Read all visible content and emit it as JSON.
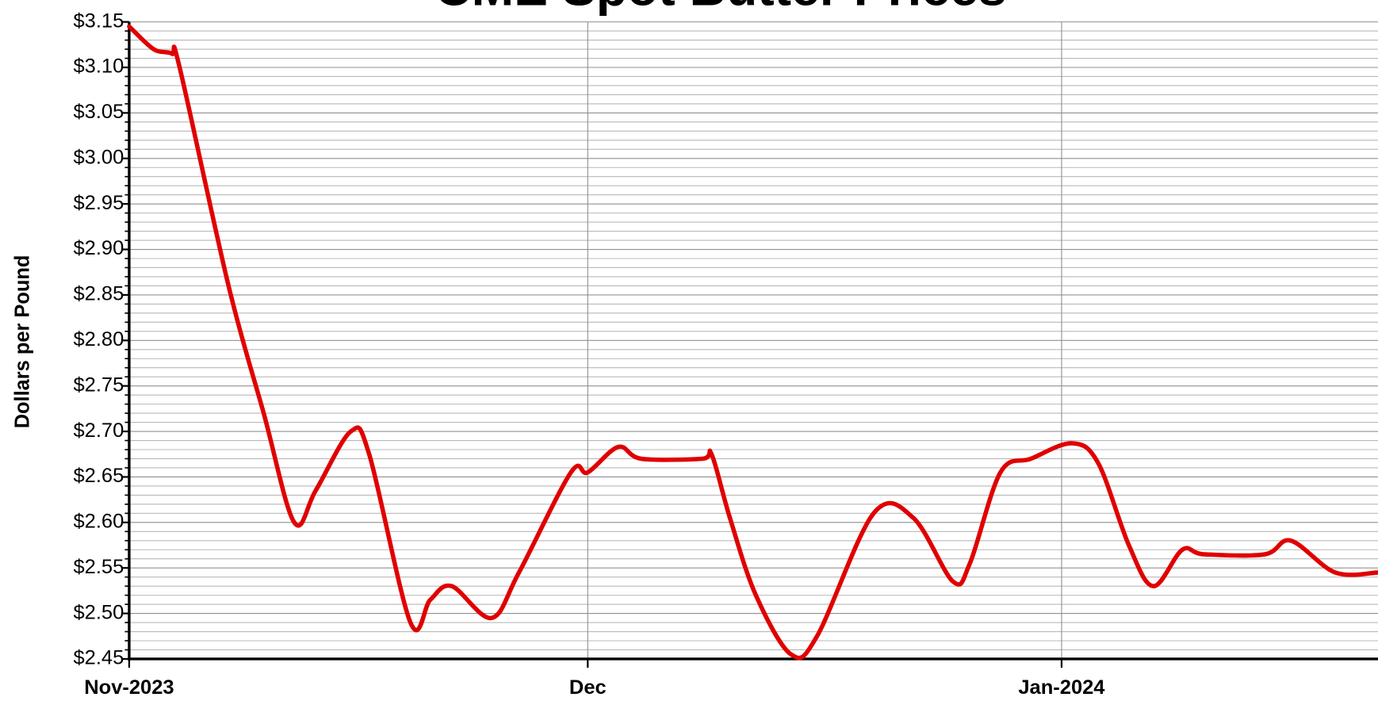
{
  "chart_data": {
    "type": "line",
    "title": "CME Spot Butter Prices",
    "y_label": "Dollars per Pound",
    "x": [
      0,
      1.6,
      2.8,
      3.3,
      6.5,
      8.8,
      10.8,
      12.2,
      14.5,
      15.7,
      18.4,
      19.7,
      21.1,
      23.7,
      25.5,
      28.9,
      30,
      32,
      33.5,
      37.5,
      38.1,
      39.3,
      41,
      43.3,
      45,
      48.7,
      51.3,
      53.9,
      55,
      57,
      59,
      61.7,
      63.4,
      65.4,
      67,
      68.9,
      70.3,
      74.3,
      76,
      78.9,
      81.7
    ],
    "series": [
      {
        "name": "CME Spot Butter",
        "color": "#e00000",
        "values": [
          3.145,
          3.12,
          3.115,
          3.1,
          2.86,
          2.72,
          2.6,
          2.635,
          2.7,
          2.675,
          2.49,
          2.515,
          2.53,
          2.495,
          2.545,
          2.655,
          2.655,
          2.683,
          2.67,
          2.67,
          2.675,
          2.605,
          2.52,
          2.455,
          2.475,
          2.61,
          2.605,
          2.535,
          2.555,
          2.655,
          2.67,
          2.687,
          2.665,
          2.575,
          2.53,
          2.57,
          2.565,
          2.565,
          2.58,
          2.545,
          2.545
        ]
      }
    ],
    "xlim": [
      0,
      81.7
    ],
    "xticks": [
      {
        "value": 0,
        "label": "Nov-2023"
      },
      {
        "value": 30,
        "label": "Dec"
      },
      {
        "value": 61,
        "label": "Jan-2024"
      }
    ],
    "ylim": [
      2.45,
      3.15
    ],
    "yticks": [
      {
        "value": 2.45,
        "label": "$2.45"
      },
      {
        "value": 2.5,
        "label": "$2.50"
      },
      {
        "value": 2.55,
        "label": "$2.55"
      },
      {
        "value": 2.6,
        "label": "$2.60"
      },
      {
        "value": 2.65,
        "label": "$2.65"
      },
      {
        "value": 2.7,
        "label": "$2.70"
      },
      {
        "value": 2.75,
        "label": "$2.75"
      },
      {
        "value": 2.8,
        "label": "$2.80"
      },
      {
        "value": 2.85,
        "label": "$2.85"
      },
      {
        "value": 2.9,
        "label": "$2.90"
      },
      {
        "value": 2.95,
        "label": "$2.95"
      },
      {
        "value": 3.0,
        "label": "$3.00"
      },
      {
        "value": 3.05,
        "label": "$3.05"
      },
      {
        "value": 3.1,
        "label": "$3.10"
      },
      {
        "value": 3.15,
        "label": "$3.15"
      }
    ],
    "grid": true
  }
}
